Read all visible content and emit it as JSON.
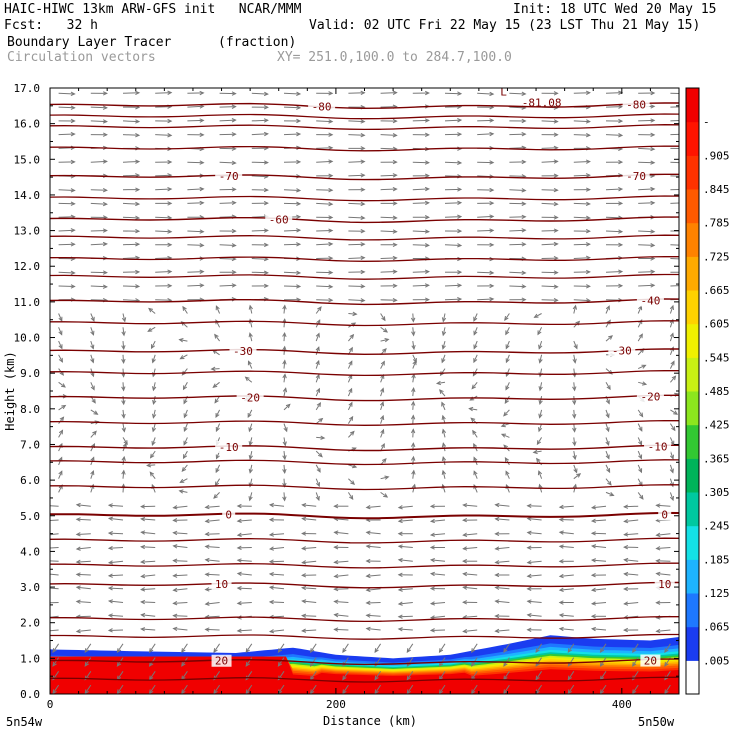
{
  "header": {
    "model_line": "HAIC-HIWC 13km ARW-GFS init   NCAR/MMM",
    "init_line": "Init: 18 UTC Wed 20 May 15",
    "fcst_line": "Fcst:   32 h",
    "valid_line": "Valid: 02 UTC Fri 22 May 15 (23 LST Thu 21 May 15)",
    "field_name": "Boundary Layer Tracer",
    "field_units": "(fraction)",
    "vector_name": "Circulation vectors",
    "xy_range": "XY= 251.0,100.0 to 284.7,100.0"
  },
  "chart_data": {
    "type": "heatmap",
    "xlabel": "Distance (km)",
    "ylabel": "Height (km)",
    "xlim": [
      0,
      440
    ],
    "ylim": [
      0,
      17
    ],
    "x_ticks": [
      0,
      200,
      400
    ],
    "x_tick_labels": [
      "0",
      "200",
      "400"
    ],
    "x_end_labels": [
      "5n54w",
      "5n50w"
    ],
    "y_ticks": [
      0,
      1,
      2,
      3,
      4,
      5,
      6,
      7,
      8,
      9,
      10,
      11,
      12,
      13,
      14,
      15,
      16,
      17
    ],
    "y_tick_labels": [
      "0.0",
      "1.0",
      "2.0",
      "3.0",
      "4.0",
      "5.0",
      "6.0",
      "7.0",
      "8.0",
      "9.0",
      "10.0",
      "11.0",
      "12.0",
      "13.0",
      "14.0",
      "15.0",
      "16.0",
      "17.0"
    ],
    "colorbar": {
      "labels": [
        ".005",
        ".065",
        ".125",
        ".185",
        ".245",
        ".305",
        ".365",
        ".425",
        ".485",
        ".545",
        ".605",
        ".665",
        ".725",
        ".785",
        ".845",
        ".905",
        "-"
      ],
      "colors": [
        "#ffffff",
        "#1a3cf0",
        "#1e78ff",
        "#1eb4ff",
        "#14e1e6",
        "#00c8a0",
        "#00b45a",
        "#32c832",
        "#8ce61e",
        "#c8f014",
        "#f0f000",
        "#ffd200",
        "#ffaa00",
        "#ff8200",
        "#ff5a00",
        "#ff3200",
        "#ff1400",
        "#f00000"
      ]
    },
    "tracer_top_km": [
      {
        "x": 0,
        "top": 1.25
      },
      {
        "x": 60,
        "top": 1.2
      },
      {
        "x": 130,
        "top": 1.15
      },
      {
        "x": 170,
        "top": 1.3
      },
      {
        "x": 200,
        "top": 1.1
      },
      {
        "x": 240,
        "top": 1.0
      },
      {
        "x": 280,
        "top": 1.1
      },
      {
        "x": 320,
        "top": 1.4
      },
      {
        "x": 350,
        "top": 1.65
      },
      {
        "x": 380,
        "top": 1.55
      },
      {
        "x": 420,
        "top": 1.5
      },
      {
        "x": 440,
        "top": 1.6
      }
    ],
    "temperature_contours": [
      {
        "level": "20",
        "height_km": 0.9,
        "label_x": [
          120,
          420
        ]
      },
      {
        "level": "10",
        "height_km": 3.05,
        "label_x": [
          120,
          430
        ]
      },
      {
        "level": "0",
        "height_km": 5.0,
        "label_x": [
          125,
          430
        ]
      },
      {
        "level": "-10",
        "height_km": 6.9,
        "label_x": [
          125,
          425
        ]
      },
      {
        "level": "-20",
        "height_km": 8.3,
        "label_x": [
          140,
          420
        ]
      },
      {
        "level": "-30",
        "height_km": 9.6,
        "label_x": [
          135,
          400
        ]
      },
      {
        "level": "-40",
        "height_km": 11.0,
        "label_x": [
          420
        ]
      },
      {
        "level": "-60",
        "height_km": 13.3,
        "label_x": [
          160
        ]
      },
      {
        "level": "-70",
        "height_km": 14.5,
        "label_x": [
          125,
          410
        ]
      },
      {
        "level": "-80",
        "height_km": 16.5,
        "label_x": [
          190,
          410
        ]
      }
    ],
    "extra_contour_heights_km": [
      0.4,
      1.6,
      2.1,
      3.6,
      4.3,
      5.8,
      6.5,
      7.6,
      9.0,
      10.4,
      11.7,
      12.2,
      12.8,
      13.9,
      15.3,
      15.9,
      16.2
    ],
    "annotations": [
      {
        "text": "L",
        "x": 315,
        "y": 16.9
      },
      {
        "text": "-81.08",
        "x": 330,
        "y": 16.6
      }
    ]
  }
}
